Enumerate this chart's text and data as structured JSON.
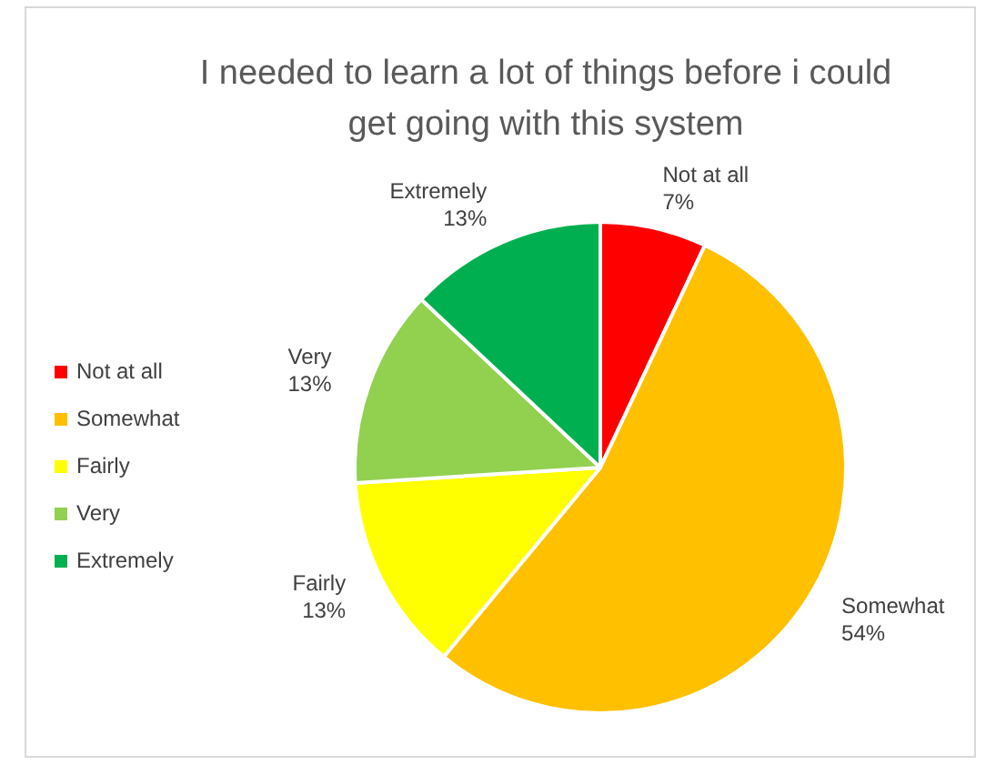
{
  "chart_data": {
    "type": "pie",
    "title": "I needed to learn a lot of things before i could get going with this system",
    "categories": [
      "Not at all",
      "Somewhat",
      "Fairly",
      "Very",
      "Extremely"
    ],
    "values": [
      7,
      54,
      13,
      13,
      13
    ],
    "colors": [
      "#ff0000",
      "#ffc000",
      "#ffff00",
      "#92d050",
      "#00b050"
    ],
    "value_labels": [
      "7%",
      "54%",
      "13%",
      "13%",
      "13%"
    ],
    "legend": "left"
  }
}
